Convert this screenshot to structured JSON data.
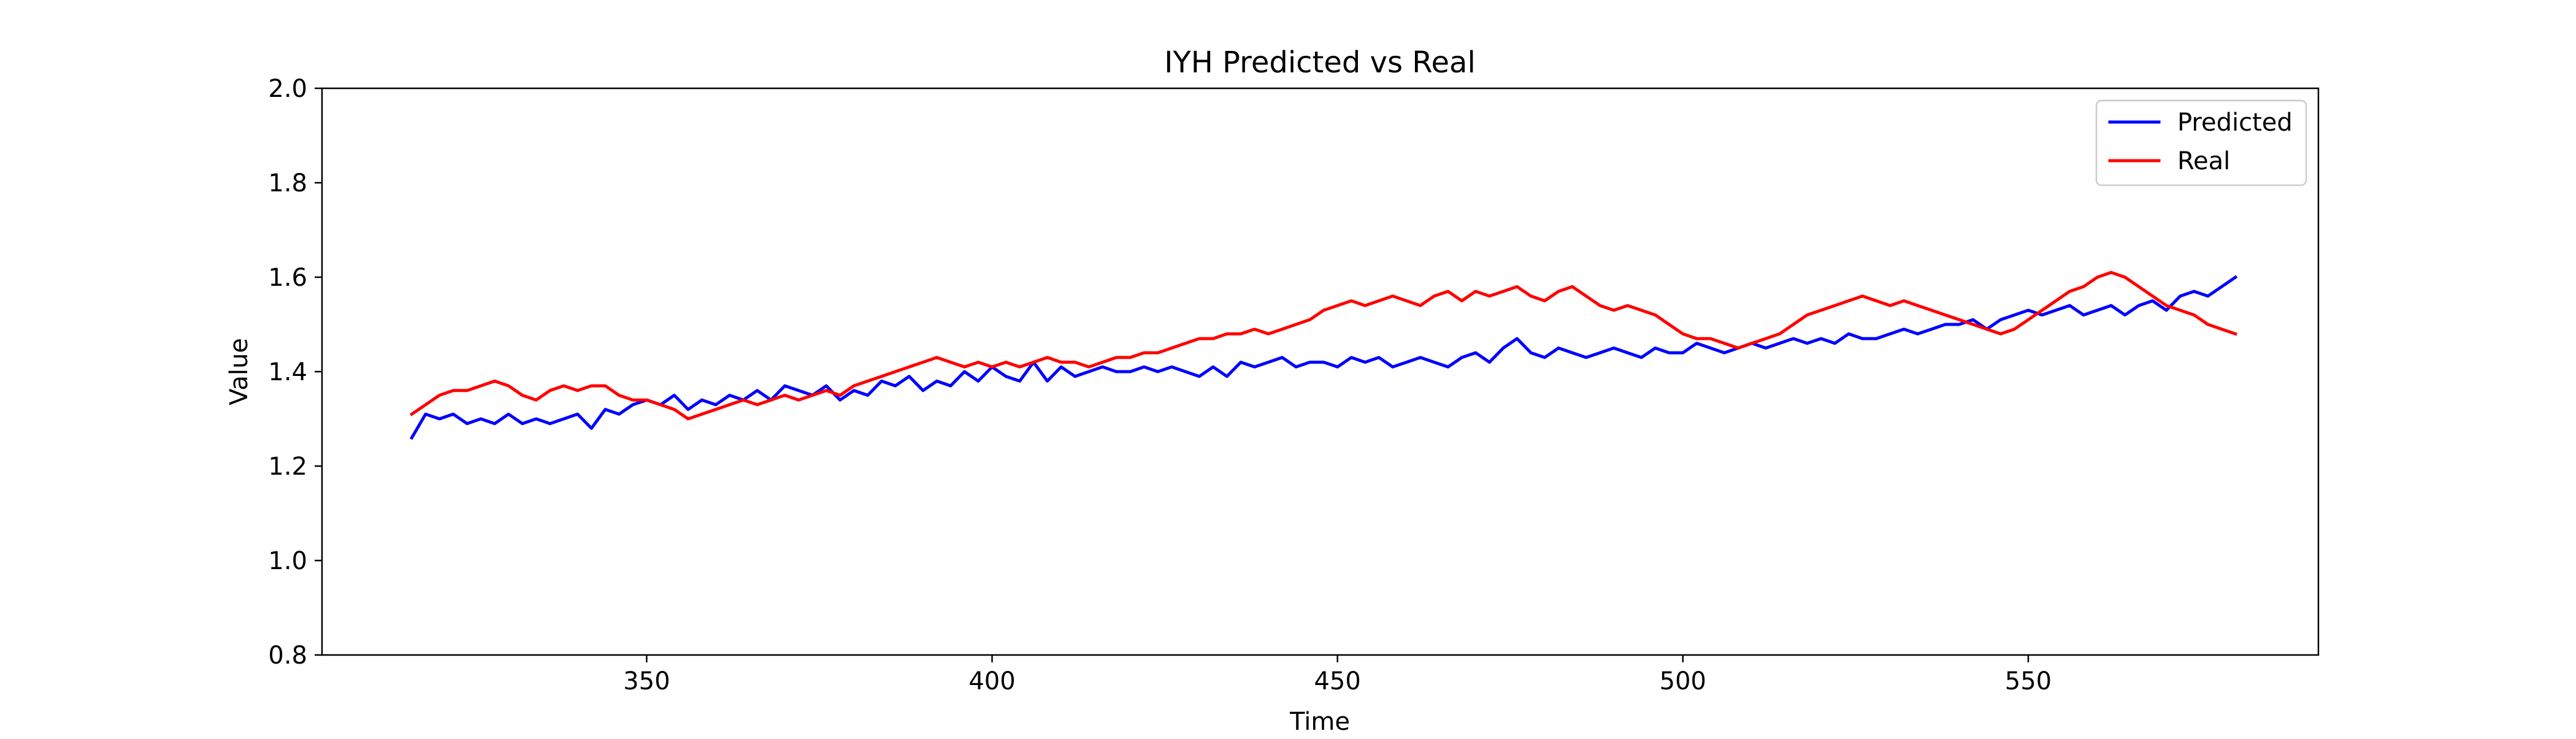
{
  "chart_data": {
    "type": "line",
    "title": "IYH Predicted vs Real",
    "xlabel": "Time",
    "ylabel": "Value",
    "xlim": [
      303,
      592
    ],
    "ylim": [
      0.8,
      2.0
    ],
    "xticks": [
      350,
      400,
      450,
      500,
      550
    ],
    "xtick_labels": [
      "350",
      "400",
      "450",
      "500",
      "550"
    ],
    "yticks": [
      0.8,
      1.0,
      1.2,
      1.4,
      1.6,
      1.8,
      2.0
    ],
    "ytick_labels": [
      "0.8",
      "1.0",
      "1.2",
      "1.4",
      "1.6",
      "1.8",
      "2.0"
    ],
    "grid": false,
    "legend_position": "top-right",
    "x": [
      316,
      318,
      320,
      322,
      324,
      326,
      328,
      330,
      332,
      334,
      336,
      338,
      340,
      342,
      344,
      346,
      348,
      350,
      352,
      354,
      356,
      358,
      360,
      362,
      364,
      366,
      368,
      370,
      372,
      374,
      376,
      378,
      380,
      382,
      384,
      386,
      388,
      390,
      392,
      394,
      396,
      398,
      400,
      402,
      404,
      406,
      408,
      410,
      412,
      414,
      416,
      418,
      420,
      422,
      424,
      426,
      428,
      430,
      432,
      434,
      436,
      438,
      440,
      442,
      444,
      446,
      448,
      450,
      452,
      454,
      456,
      458,
      460,
      462,
      464,
      466,
      468,
      470,
      472,
      474,
      476,
      478,
      480,
      482,
      484,
      486,
      488,
      490,
      492,
      494,
      496,
      498,
      500,
      502,
      504,
      506,
      508,
      510,
      512,
      514,
      516,
      518,
      520,
      522,
      524,
      526,
      528,
      530,
      532,
      534,
      536,
      538,
      540,
      542,
      544,
      546,
      548,
      550,
      552,
      554,
      556,
      558,
      560,
      562,
      564,
      566,
      568,
      570,
      572,
      574,
      576,
      578,
      580
    ],
    "series": [
      {
        "name": "Predicted",
        "color": "#0000ff",
        "values": [
          1.26,
          1.31,
          1.3,
          1.31,
          1.29,
          1.3,
          1.29,
          1.31,
          1.29,
          1.3,
          1.29,
          1.3,
          1.31,
          1.28,
          1.32,
          1.31,
          1.33,
          1.34,
          1.33,
          1.35,
          1.32,
          1.34,
          1.33,
          1.35,
          1.34,
          1.36,
          1.34,
          1.37,
          1.36,
          1.35,
          1.37,
          1.34,
          1.36,
          1.35,
          1.38,
          1.37,
          1.39,
          1.36,
          1.38,
          1.37,
          1.4,
          1.38,
          1.41,
          1.39,
          1.38,
          1.42,
          1.38,
          1.41,
          1.39,
          1.4,
          1.41,
          1.4,
          1.4,
          1.41,
          1.4,
          1.41,
          1.4,
          1.39,
          1.41,
          1.39,
          1.42,
          1.41,
          1.42,
          1.43,
          1.41,
          1.42,
          1.42,
          1.41,
          1.43,
          1.42,
          1.43,
          1.41,
          1.42,
          1.43,
          1.42,
          1.41,
          1.43,
          1.44,
          1.42,
          1.45,
          1.47,
          1.44,
          1.43,
          1.45,
          1.44,
          1.43,
          1.44,
          1.45,
          1.44,
          1.43,
          1.45,
          1.44,
          1.44,
          1.46,
          1.45,
          1.44,
          1.45,
          1.46,
          1.45,
          1.46,
          1.47,
          1.46,
          1.47,
          1.46,
          1.48,
          1.47,
          1.47,
          1.48,
          1.49,
          1.48,
          1.49,
          1.5,
          1.5,
          1.51,
          1.49,
          1.51,
          1.52,
          1.53,
          1.52,
          1.53,
          1.54,
          1.52,
          1.53,
          1.54,
          1.52,
          1.54,
          1.55,
          1.53,
          1.56,
          1.57,
          1.56,
          1.58,
          1.6
        ]
      },
      {
        "name": "Real",
        "color": "#ff0000",
        "values": [
          1.31,
          1.33,
          1.35,
          1.36,
          1.36,
          1.37,
          1.38,
          1.37,
          1.35,
          1.34,
          1.36,
          1.37,
          1.36,
          1.37,
          1.37,
          1.35,
          1.34,
          1.34,
          1.33,
          1.32,
          1.3,
          1.31,
          1.32,
          1.33,
          1.34,
          1.33,
          1.34,
          1.35,
          1.34,
          1.35,
          1.36,
          1.35,
          1.37,
          1.38,
          1.39,
          1.4,
          1.41,
          1.42,
          1.43,
          1.42,
          1.41,
          1.42,
          1.41,
          1.42,
          1.41,
          1.42,
          1.43,
          1.42,
          1.42,
          1.41,
          1.42,
          1.43,
          1.43,
          1.44,
          1.44,
          1.45,
          1.46,
          1.47,
          1.47,
          1.48,
          1.48,
          1.49,
          1.48,
          1.49,
          1.5,
          1.51,
          1.53,
          1.54,
          1.55,
          1.54,
          1.55,
          1.56,
          1.55,
          1.54,
          1.56,
          1.57,
          1.55,
          1.57,
          1.56,
          1.57,
          1.58,
          1.56,
          1.55,
          1.57,
          1.58,
          1.56,
          1.54,
          1.53,
          1.54,
          1.53,
          1.52,
          1.5,
          1.48,
          1.47,
          1.47,
          1.46,
          1.45,
          1.46,
          1.47,
          1.48,
          1.5,
          1.52,
          1.53,
          1.54,
          1.55,
          1.56,
          1.55,
          1.54,
          1.55,
          1.54,
          1.53,
          1.52,
          1.51,
          1.5,
          1.49,
          1.48,
          1.49,
          1.51,
          1.53,
          1.55,
          1.57,
          1.58,
          1.6,
          1.61,
          1.6,
          1.58,
          1.56,
          1.54,
          1.53,
          1.52,
          1.5,
          1.49,
          1.48
        ]
      }
    ]
  }
}
